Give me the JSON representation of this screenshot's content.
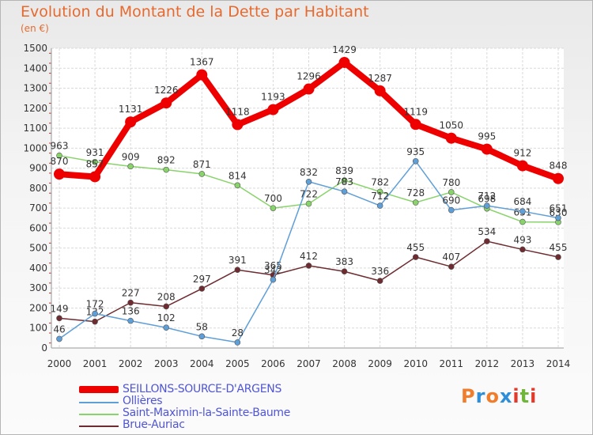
{
  "title": "Evolution du Montant de la Dette par Habitant",
  "unit": "(en €)",
  "logo": {
    "letters": [
      "P",
      "r",
      "o",
      "x",
      "i",
      "t",
      "i"
    ],
    "colors": [
      "#ef7d2b",
      "#2e8fd8",
      "#ef7d2b",
      "#2e8fd8",
      "#e23a2a",
      "#6fb63a",
      "#e23a2a"
    ]
  },
  "chart_data": {
    "type": "line",
    "title": "Evolution du Montant de la Dette par Habitant",
    "ylabel": "(en €)",
    "xlabel": "",
    "ylim": [
      0,
      1500
    ],
    "yticks": [
      0,
      100,
      200,
      300,
      400,
      500,
      600,
      700,
      800,
      900,
      1000,
      1100,
      1200,
      1300,
      1400,
      1500
    ],
    "grid": true,
    "legend": "bottom-left",
    "x": [
      "2000",
      "2001",
      "2002",
      "2003",
      "2004",
      "2005",
      "2006",
      "2007",
      "2008",
      "2009",
      "2010",
      "2011",
      "2012",
      "2013",
      "2014"
    ],
    "series": [
      {
        "name": "SEILLONS-SOURCE-D'ARGENS",
        "color": "#ee0000",
        "values": [
          870,
          857,
          1131,
          1226,
          1367,
          1118,
          1193,
          1296,
          1429,
          1287,
          1119,
          1050,
          995,
          912,
          848
        ]
      },
      {
        "name": "Ollières",
        "color": "#5f9fd8",
        "values": [
          46,
          172,
          136,
          102,
          58,
          28,
          342,
          832,
          783,
          712,
          935,
          690,
          712,
          684,
          651
        ]
      },
      {
        "name": "Saint-Maximin-la-Sainte-Baume",
        "color": "#88d36a",
        "values": [
          963,
          931,
          909,
          892,
          871,
          814,
          700,
          722,
          839,
          782,
          728,
          780,
          698,
          631,
          630
        ]
      },
      {
        "name": "Brue-Auriac",
        "color": "#6e2b30",
        "values": [
          149,
          132,
          227,
          208,
          297,
          391,
          365,
          412,
          383,
          336,
          455,
          407,
          534,
          493,
          455
        ]
      }
    ]
  }
}
